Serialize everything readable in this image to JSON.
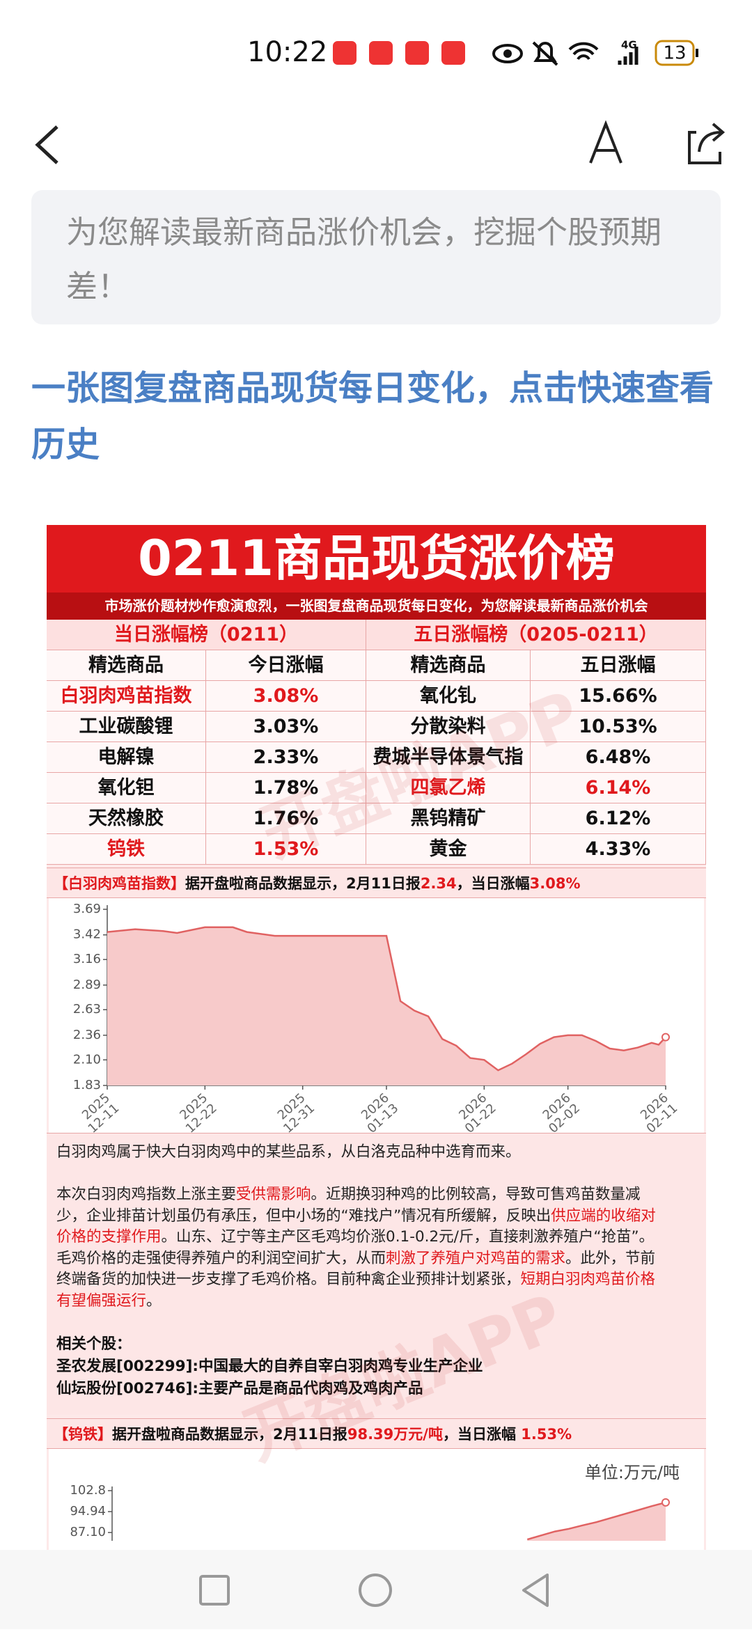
{
  "status_bar": {
    "time": "10:22",
    "network": "4G",
    "battery": "13"
  },
  "intro": "为您解读最新商品涨价机会，挖掘个股预期差！",
  "heading": "一张图复盘商品现货每日变化，点击快速查看历史",
  "poster": {
    "title": "0211商品现货涨价榜",
    "subtitle": "市场涨价题材炒作愈演愈烈，一张图复盘商品现货每日变化，为您解读最新商品涨价机会",
    "tables": [
      {
        "title": "当日涨幅榜（0211）",
        "columns": [
          "精选商品",
          "今日涨幅"
        ],
        "rows": [
          [
            "白羽肉鸡苗指数",
            "3.08%"
          ],
          [
            "工业碳酸锂",
            "3.03%"
          ],
          [
            "电解镍",
            "2.33%"
          ],
          [
            "氧化钽",
            "1.78%"
          ],
          [
            "天然橡胶",
            "1.76%"
          ],
          [
            "钨铁",
            "1.53%"
          ]
        ],
        "highlighted": [
          0,
          5
        ]
      },
      {
        "title": "五日涨幅榜（0205-0211）",
        "columns": [
          "精选商品",
          "五日涨幅"
        ],
        "rows": [
          [
            "氧化钆",
            "15.66%"
          ],
          [
            "分散染料",
            "10.53%"
          ],
          [
            "费城半导体景气指",
            "6.48%"
          ],
          [
            "四氯乙烯",
            "6.14%"
          ],
          [
            "黑钨精矿",
            "6.12%"
          ],
          [
            "黄金",
            "4.33%"
          ]
        ],
        "highlighted": [
          3
        ]
      }
    ],
    "sections": [
      {
        "headline": [
          {
            "text": "【白羽肉鸡苗指数】",
            "red": true
          },
          {
            "text": "据开盘啦商品数据显示，2月11日报",
            "red": false
          },
          {
            "text": "2.34",
            "red": true
          },
          {
            "text": "，当日涨幅",
            "red": false
          },
          {
            "text": "3.08%",
            "red": true
          }
        ],
        "chart": {
          "type": "line",
          "color": "#e06262",
          "fill": "#f7caca",
          "x": [
            0,
            2,
            4,
            5,
            7,
            9,
            10,
            12,
            14,
            16,
            18,
            20,
            21,
            22,
            23,
            24,
            25,
            26,
            27,
            28,
            29,
            30,
            31,
            32,
            33,
            34,
            35,
            36,
            37,
            38,
            39,
            39.5,
            40
          ],
          "values": [
            3.45,
            3.48,
            3.46,
            3.44,
            3.5,
            3.5,
            3.45,
            3.41,
            3.41,
            3.41,
            3.41,
            3.41,
            2.72,
            2.62,
            2.56,
            2.32,
            2.25,
            2.12,
            2.1,
            1.99,
            2.06,
            2.16,
            2.27,
            2.34,
            2.36,
            2.36,
            2.3,
            2.22,
            2.2,
            2.23,
            2.28,
            2.26,
            2.34
          ],
          "xlim": [
            0,
            40
          ],
          "ylim": [
            1.83,
            3.69
          ],
          "yticks": [
            3.69,
            3.42,
            3.16,
            2.89,
            2.63,
            2.36,
            {
              "value": 2.1,
              "label": "2.10"
            },
            1.83
          ],
          "xticks": [
            {
              "value": 0,
              "label": "2025 12-11"
            },
            {
              "value": 7,
              "label": "2025 12-22"
            },
            {
              "value": 14,
              "label": "2025 12-31"
            },
            {
              "value": 20,
              "label": "2026 01-13"
            },
            {
              "value": 27,
              "label": "2026 01-22"
            },
            {
              "value": 33,
              "label": "2026 02-02"
            },
            {
              "value": 40,
              "label": "2026 02-11"
            }
          ]
        },
        "paragraphs": [
          [
            {
              "text": "白羽肉鸡属于快大白羽肉鸡中的某些品系，从白洛克品种中选育而来。",
              "red": false
            }
          ],
          [
            {
              "text": "本次白羽肉鸡指数上涨主要",
              "red": false
            },
            {
              "text": "受供需影响",
              "red": true
            },
            {
              "text": "。近期换羽种鸡的比例较高，导致可售鸡苗数量减少，企业排苗计划虽仍有承压，但中小场的“难找户”情况有所缓解，反映出",
              "red": false
            },
            {
              "text": "供应端的收缩对价格的支撑作用",
              "red": true
            },
            {
              "text": "。山东、辽宁等主产区毛鸡均价涨0.1-0.2元/斤，直接刺激养殖户“抢苗”。毛鸡价格的走强使得养殖户的利润空间扩大，从而",
              "red": false
            },
            {
              "text": "刺激了养殖户对鸡苗的需求",
              "red": true
            },
            {
              "text": "。此外，节前终端备货的加快进一步支撑了毛鸡价格。目前种禽企业预排计划紧张，",
              "red": false
            },
            {
              "text": "短期白羽肉鸡苗价格有望偏强运行",
              "red": true
            },
            {
              "text": "。",
              "red": false
            }
          ]
        ],
        "related_title": "相关个股：",
        "related": [
          "圣农发展[002299]:中国最大的自养自宰白羽肉鸡专业生产企业",
          "仙坛股份[002746]:主要产品是商品代肉鸡及鸡肉产品"
        ]
      },
      {
        "headline": [
          {
            "text": "【钨铁】",
            "red": true
          },
          {
            "text": "据开盘啦商品数据显示，2月11日报",
            "red": false
          },
          {
            "text": "98.39万元/吨",
            "red": true
          },
          {
            "text": "，当日涨幅 ",
            "red": false
          },
          {
            "text": "1.53%",
            "red": true
          }
        ],
        "chart": {
          "type": "line",
          "color": "#e06262",
          "fill": "#f7caca",
          "unit": "单位:万元/吨",
          "x": [
            30,
            31,
            32,
            33,
            34,
            35,
            36,
            37,
            38,
            39,
            40
          ],
          "values": [
            84.5,
            86,
            87.5,
            88.5,
            89.8,
            91,
            92.5,
            94,
            95.5,
            97,
            98.39
          ],
          "xlim": [
            0,
            40
          ],
          "ylim": [
            84,
            102.8
          ],
          "yticks": [
            102.8,
            94.94,
            {
              "value": 87.1,
              "label": "87.10"
            }
          ]
        }
      }
    ],
    "watermark": "开盘啦APP"
  }
}
